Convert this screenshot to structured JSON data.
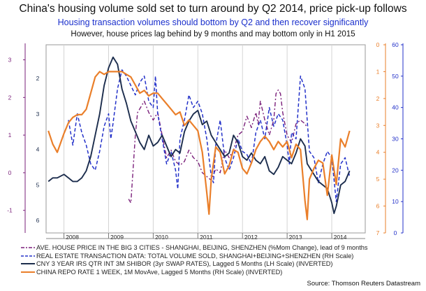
{
  "chart_data": {
    "type": "line",
    "title": "China's housing volume sold set to turn around by Q2 2014, price pick-up follows",
    "subtitle": "Housing transaction volumes should bottom by Q2 and then recover significantly",
    "subtitle2": "However, house prices lag behind by 9 months and may bottom only in H1 2015",
    "x_ticks": [
      "2008",
      "2009",
      "2010",
      "2011",
      "2012",
      "2013",
      "2014"
    ],
    "xlim": [
      2007.6,
      2014.75
    ],
    "axes": {
      "outer_left": {
        "ticks": [
          3,
          2,
          1,
          0,
          -1
        ],
        "ylim": [
          -1.6,
          3.4
        ],
        "color": "#7a1f7a"
      },
      "inner_left": {
        "ticks": [
          2,
          3,
          4,
          5,
          6
        ],
        "ylim": [
          6.35,
          1.05
        ],
        "inverted": true,
        "color": "#1c2d4d"
      },
      "inner_right": {
        "ticks": [
          0,
          1,
          2,
          3,
          4,
          5,
          6,
          7
        ],
        "ylim": [
          7,
          0
        ],
        "inverted": true,
        "color": "#ea7f2a"
      },
      "outer_right": {
        "ticks": [
          0,
          10,
          20,
          30,
          40,
          50,
          60
        ],
        "ylim": [
          0,
          60
        ],
        "color": "#2331c9"
      }
    },
    "series": [
      {
        "name": "AVE. HOUSE PRICE IN THE BIG 3 CITIES - SHANGHAI, BEIJING, SHENZHEN (%Mom Change), lead of 9 months",
        "axis": "outer_left",
        "color": "#7a1f7a",
        "dash": "6,3,2,3",
        "width": 1.4,
        "x": [
          2009.45,
          2009.5,
          2009.55,
          2009.6,
          2009.65,
          2009.7,
          2009.8,
          2009.9,
          2010.0,
          2010.1,
          2010.2,
          2010.3,
          2010.4,
          2010.5,
          2010.6,
          2010.7,
          2010.8,
          2010.9,
          2011.0,
          2011.1,
          2011.2,
          2011.3,
          2011.4,
          2011.5,
          2011.6,
          2011.7,
          2011.8,
          2011.9,
          2012.0,
          2012.1,
          2012.2,
          2012.3,
          2012.35,
          2012.4,
          2012.5,
          2012.6,
          2012.7,
          2012.75,
          2012.8,
          2012.85,
          2012.9,
          2013.0,
          2013.1,
          2013.2,
          2013.3,
          2013.4,
          2013.45
        ],
        "y": [
          -0.7,
          -0.8,
          0.1,
          1.0,
          1.6,
          1.7,
          1.9,
          1.6,
          1.4,
          1.6,
          1.0,
          0.4,
          0.6,
          0.3,
          0.2,
          0.3,
          0.6,
          0.4,
          0.3,
          0.0,
          -0.1,
          -0.2,
          0.1,
          0.0,
          0.6,
          0.4,
          0.6,
          1.0,
          1.1,
          1.5,
          1.2,
          1.6,
          1.3,
          1.9,
          1.4,
          1.0,
          1.4,
          2.1,
          2.2,
          2.1,
          1.6,
          1.0,
          0.8,
          1.3,
          1.4,
          1.3,
          1.2
        ]
      },
      {
        "name": "REAL ESTATE TRANSACTION DATA: TOTAL VOLUME SOLD,  SHANGHAI+BEIJING+SHENZHEN (RH Scale)",
        "axis": "outer_right",
        "color": "#2331c9",
        "dash": "5,3",
        "width": 1.5,
        "x": [
          2008.1,
          2008.2,
          2008.3,
          2008.4,
          2008.5,
          2008.6,
          2008.7,
          2008.8,
          2008.9,
          2009.0,
          2009.05,
          2009.1,
          2009.2,
          2009.3,
          2009.4,
          2009.5,
          2009.6,
          2009.7,
          2009.8,
          2009.9,
          2010.0,
          2010.05,
          2010.1,
          2010.2,
          2010.3,
          2010.4,
          2010.5,
          2010.55,
          2010.6,
          2010.7,
          2010.8,
          2010.9,
          2011.0,
          2011.1,
          2011.2,
          2011.3,
          2011.35,
          2011.4,
          2011.5,
          2011.6,
          2011.7,
          2011.8,
          2011.9,
          2012.0,
          2012.1,
          2012.2,
          2012.3,
          2012.4,
          2012.5,
          2012.6,
          2012.7,
          2012.8,
          2012.9,
          2013.0,
          2013.05,
          2013.1,
          2013.2,
          2013.3,
          2013.4,
          2013.5,
          2013.6,
          2013.7,
          2013.8,
          2013.9,
          2014.0,
          2014.1,
          2014.2,
          2014.3,
          2014.4
        ],
        "y": [
          36,
          28,
          38,
          32,
          28,
          22,
          20,
          26,
          34,
          38,
          30,
          35,
          46,
          52,
          50,
          47,
          44,
          48,
          50,
          42,
          40,
          50,
          38,
          30,
          22,
          26,
          20,
          14,
          30,
          36,
          44,
          40,
          42,
          38,
          30,
          18,
          16,
          28,
          36,
          24,
          20,
          24,
          30,
          26,
          25,
          22,
          32,
          36,
          30,
          40,
          34,
          38,
          36,
          28,
          22,
          32,
          30,
          50,
          46,
          26,
          24,
          16,
          22,
          26,
          24,
          10,
          22,
          24,
          18
        ]
      },
      {
        "name": "CNY 3 YEAR IRS QTR INT 3M SHIBOR (3yr SWAP RATES), Lagged 5 Months  (LH Scale) (INVERTED)",
        "axis": "inner_left",
        "color": "#1c2d4d",
        "dash": "",
        "width": 1.9,
        "x": [
          2007.65,
          2007.75,
          2007.85,
          2008.0,
          2008.1,
          2008.2,
          2008.3,
          2008.4,
          2008.5,
          2008.6,
          2008.7,
          2008.8,
          2008.9,
          2009.0,
          2009.1,
          2009.2,
          2009.3,
          2009.4,
          2009.5,
          2009.6,
          2009.7,
          2009.8,
          2009.9,
          2010.0,
          2010.1,
          2010.2,
          2010.3,
          2010.4,
          2010.5,
          2010.6,
          2010.7,
          2010.8,
          2010.9,
          2011.0,
          2011.1,
          2011.2,
          2011.3,
          2011.4,
          2011.5,
          2011.6,
          2011.7,
          2011.8,
          2011.9,
          2012.0,
          2012.1,
          2012.2,
          2012.3,
          2012.4,
          2012.5,
          2012.6,
          2012.7,
          2012.8,
          2012.9,
          2013.0,
          2013.1,
          2013.2,
          2013.3,
          2013.4,
          2013.45,
          2013.5,
          2013.6,
          2013.7,
          2013.8,
          2013.9,
          2014.0,
          2014.05,
          2014.1,
          2014.15,
          2014.2,
          2014.3,
          2014.4
        ],
        "y": [
          4.9,
          4.8,
          4.8,
          4.7,
          4.8,
          4.9,
          4.9,
          4.8,
          4.6,
          4.2,
          3.6,
          3.0,
          2.2,
          1.7,
          1.4,
          1.6,
          2.3,
          2.7,
          3.2,
          3.5,
          3.8,
          4.0,
          3.6,
          3.9,
          3.8,
          3.6,
          3.9,
          4.2,
          4.0,
          4.1,
          3.5,
          3.2,
          3.0,
          2.9,
          3.3,
          3.2,
          3.6,
          3.8,
          4.0,
          4.2,
          4.1,
          3.6,
          3.8,
          4.2,
          4.3,
          4.1,
          4.3,
          4.4,
          4.2,
          4.6,
          4.7,
          4.5,
          4.2,
          4.3,
          4.4,
          4.1,
          3.7,
          3.9,
          4.4,
          4.5,
          4.7,
          4.9,
          5.0,
          5.1,
          5.5,
          5.8,
          5.6,
          5.3,
          5.0,
          4.9,
          4.6
        ]
      },
      {
        "name": "CHINA REPO RATE 1 WEEK, 1M MovAve, Lagged 5 Months  (RH Scale) (INVERTED)",
        "axis": "inner_right",
        "color": "#ea7f2a",
        "dash": "",
        "width": 2.2,
        "x": [
          2007.65,
          2007.75,
          2007.85,
          2008.0,
          2008.1,
          2008.2,
          2008.3,
          2008.4,
          2008.5,
          2008.6,
          2008.7,
          2008.8,
          2008.9,
          2009.0,
          2009.1,
          2009.2,
          2009.3,
          2009.4,
          2009.5,
          2009.6,
          2009.7,
          2009.8,
          2009.9,
          2010.0,
          2010.1,
          2010.2,
          2010.3,
          2010.4,
          2010.5,
          2010.6,
          2010.7,
          2010.8,
          2010.9,
          2011.0,
          2011.1,
          2011.2,
          2011.25,
          2011.3,
          2011.4,
          2011.5,
          2011.6,
          2011.7,
          2011.8,
          2011.9,
          2012.0,
          2012.1,
          2012.2,
          2012.3,
          2012.4,
          2012.5,
          2012.6,
          2012.7,
          2012.8,
          2012.9,
          2013.0,
          2013.1,
          2013.2,
          2013.3,
          2013.4,
          2013.45,
          2013.5,
          2013.6,
          2013.7,
          2013.8,
          2013.9,
          2014.0,
          2014.1,
          2014.2,
          2014.3,
          2014.4
        ],
        "y": [
          3.2,
          3.7,
          4.0,
          3.3,
          2.9,
          2.7,
          2.6,
          2.6,
          2.4,
          1.8,
          1.2,
          1.0,
          1.1,
          1.0,
          1.0,
          1.0,
          1.0,
          1.1,
          1.2,
          1.5,
          1.8,
          1.7,
          1.9,
          1.8,
          1.8,
          2.0,
          2.2,
          2.4,
          2.6,
          2.5,
          3.0,
          2.8,
          3.0,
          3.2,
          4.0,
          5.5,
          6.3,
          5.0,
          3.8,
          4.0,
          4.8,
          4.5,
          3.9,
          4.0,
          4.6,
          4.8,
          4.4,
          3.9,
          3.6,
          3.4,
          3.6,
          3.9,
          3.6,
          3.8,
          3.6,
          4.2,
          3.7,
          3.9,
          5.8,
          6.5,
          5.0,
          4.6,
          4.3,
          4.4,
          5.6,
          4.1,
          5.2,
          3.5,
          3.8,
          3.2
        ]
      }
    ]
  },
  "source": "Source: Thomson Reuters Datastream"
}
